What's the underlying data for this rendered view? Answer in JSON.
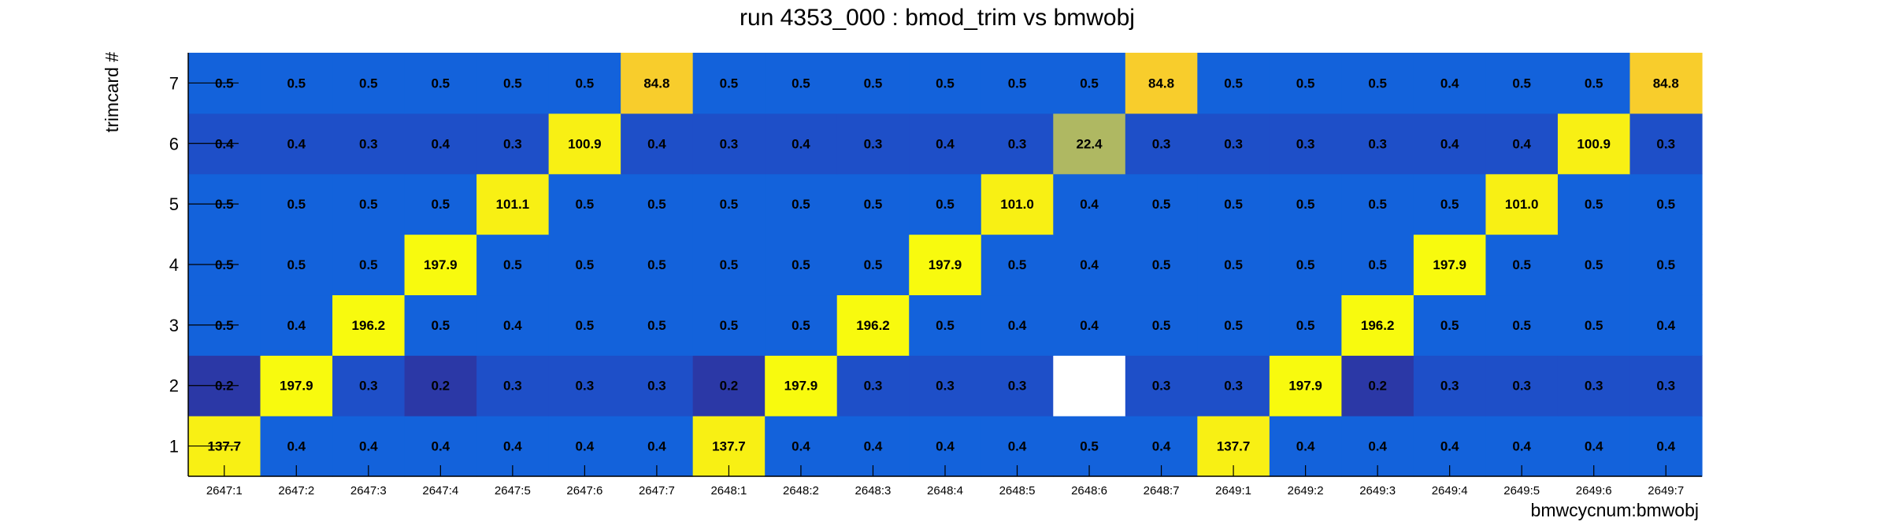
{
  "chart_data": {
    "type": "heatmap",
    "title": "run 4353_000 : bmod_trim vs bmwobj",
    "xlabel": "bmwcycnum:bmwobj",
    "ylabel": "trimcard #",
    "x_categories": [
      "2647:1",
      "2647:2",
      "2647:3",
      "2647:4",
      "2647:5",
      "2647:6",
      "2647:7",
      "2648:1",
      "2648:2",
      "2648:3",
      "2648:4",
      "2648:5",
      "2648:6",
      "2648:7",
      "2649:1",
      "2649:2",
      "2649:3",
      "2649:4",
      "2649:5",
      "2649:6",
      "2649:7"
    ],
    "y_categories": [
      "1",
      "2",
      "3",
      "4",
      "5",
      "6",
      "7"
    ],
    "values": [
      [
        137.7,
        0.4,
        0.4,
        0.4,
        0.4,
        0.4,
        0.4,
        137.7,
        0.4,
        0.4,
        0.4,
        0.4,
        0.5,
        0.4,
        137.7,
        0.4,
        0.4,
        0.4,
        0.4,
        0.4,
        0.4
      ],
      [
        0.2,
        197.9,
        0.3,
        0.2,
        0.3,
        0.3,
        0.3,
        0.2,
        197.9,
        0.3,
        0.3,
        0.3,
        null,
        0.3,
        0.3,
        197.9,
        0.2,
        0.3,
        0.3,
        0.3,
        0.3
      ],
      [
        0.5,
        0.4,
        196.2,
        0.5,
        0.4,
        0.5,
        0.5,
        0.5,
        0.5,
        196.2,
        0.5,
        0.4,
        0.4,
        0.5,
        0.5,
        0.5,
        196.2,
        0.5,
        0.5,
        0.5,
        0.4
      ],
      [
        0.5,
        0.5,
        0.5,
        197.9,
        0.5,
        0.5,
        0.5,
        0.5,
        0.5,
        0.5,
        197.9,
        0.5,
        0.4,
        0.5,
        0.5,
        0.5,
        0.5,
        197.9,
        0.5,
        0.5,
        0.5
      ],
      [
        0.5,
        0.5,
        0.5,
        0.5,
        101.1,
        0.5,
        0.5,
        0.5,
        0.5,
        0.5,
        0.5,
        101.0,
        0.4,
        0.5,
        0.5,
        0.5,
        0.5,
        0.5,
        101.0,
        0.5,
        0.5
      ],
      [
        0.4,
        0.4,
        0.3,
        0.4,
        0.3,
        100.9,
        0.4,
        0.3,
        0.4,
        0.3,
        0.4,
        0.3,
        22.4,
        0.3,
        0.3,
        0.3,
        0.3,
        0.4,
        0.4,
        100.9,
        0.3
      ],
      [
        0.5,
        0.5,
        0.5,
        0.5,
        0.5,
        0.5,
        84.8,
        0.5,
        0.5,
        0.5,
        0.5,
        0.5,
        0.5,
        84.8,
        0.5,
        0.5,
        0.5,
        0.4,
        0.5,
        0.5,
        84.8
      ]
    ],
    "colors": {
      "low_dark": "#2b38a6",
      "low": "#1e4fc8",
      "base": "#1362db",
      "mid": "#afb862",
      "high_84": "#f8cd2c",
      "high_100": "#f8f014",
      "high_max": "#f8fa0e",
      "empty": "#ffffff"
    },
    "grid": false,
    "legend": "none"
  }
}
